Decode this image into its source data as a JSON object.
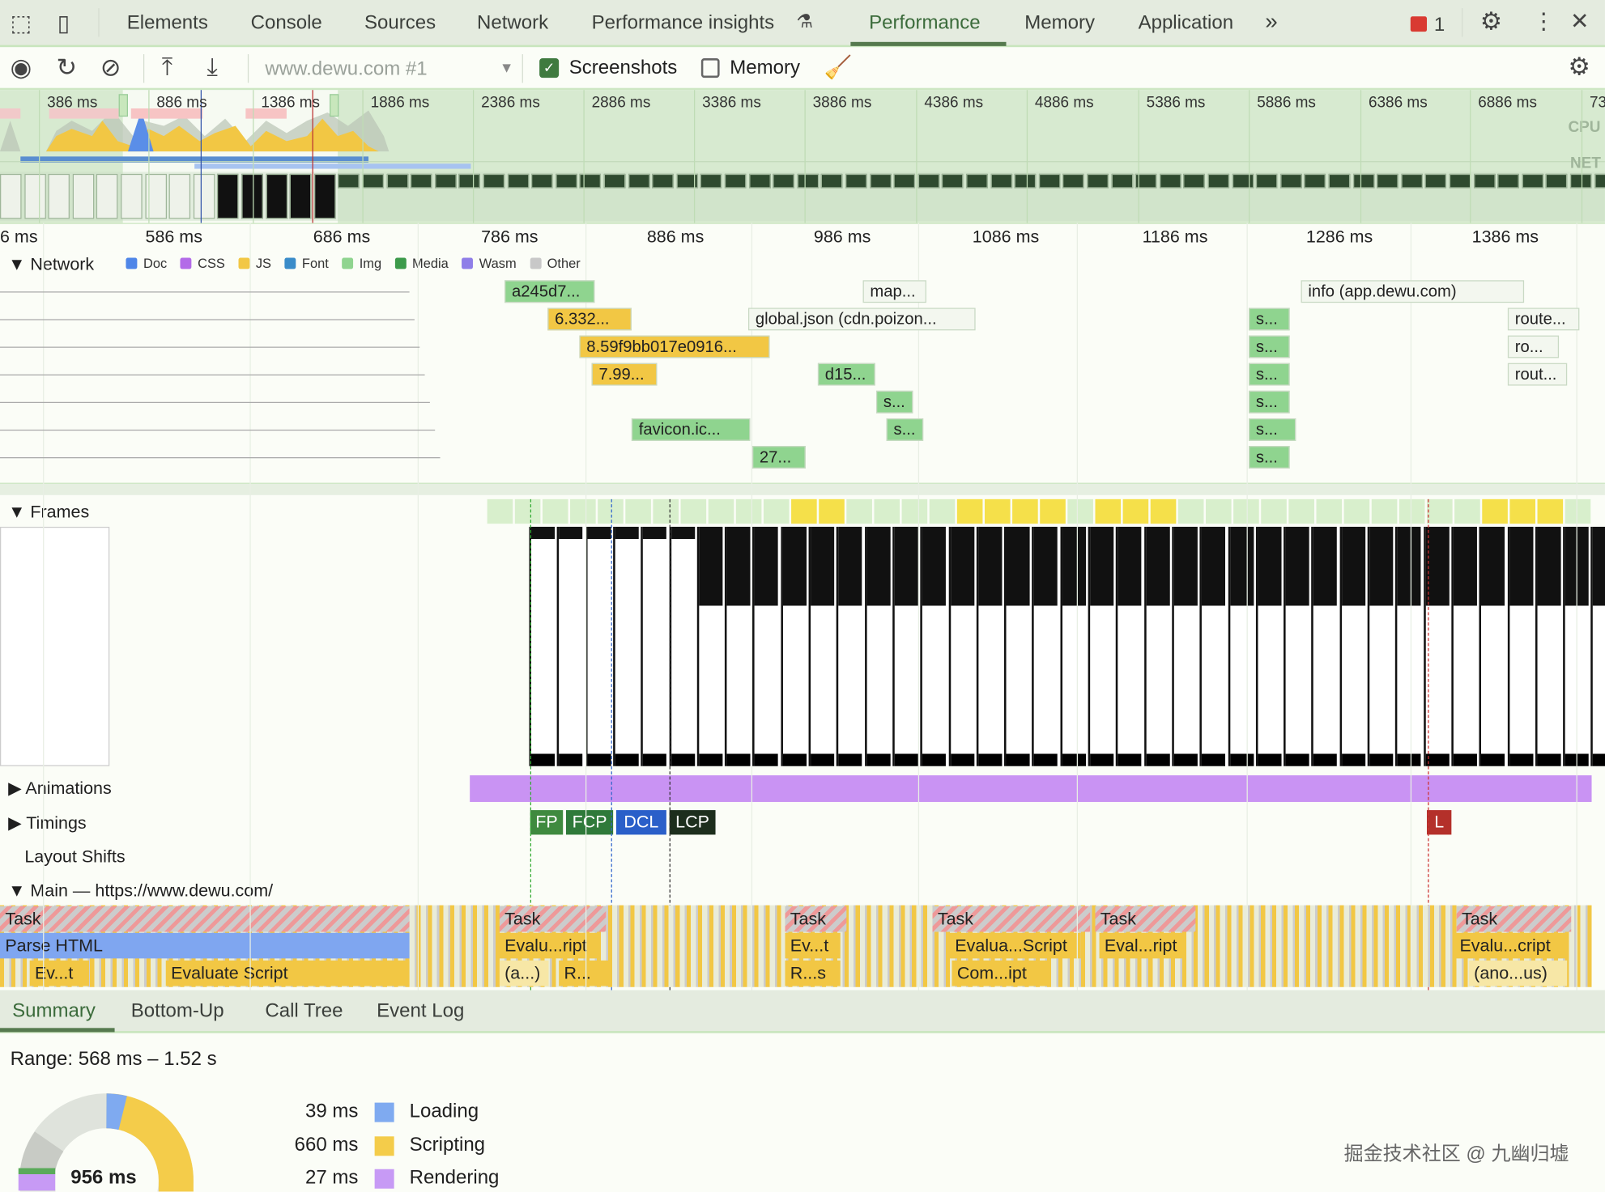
{
  "tabs": {
    "items": [
      "Elements",
      "Console",
      "Sources",
      "Network",
      "Performance insights",
      "Performance",
      "Memory",
      "Application"
    ],
    "active": "Performance",
    "more": "»",
    "issues_count": "1"
  },
  "toolbar": {
    "profile_select": "www.dewu.com #1",
    "screenshots_label": "Screenshots",
    "screenshots_checked": true,
    "memory_label": "Memory",
    "memory_checked": false
  },
  "overview": {
    "ticks": [
      "386 ms",
      "886 ms",
      "1386 ms",
      "1886 ms",
      "2386 ms",
      "2886 ms",
      "3386 ms",
      "3886 ms",
      "4386 ms",
      "4886 ms",
      "5386 ms",
      "5886 ms",
      "6386 ms",
      "6886 ms",
      "73"
    ],
    "cpu_label": "CPU",
    "net_label": "NET"
  },
  "ruler": {
    "ticks": [
      "6 ms",
      "586 ms",
      "686 ms",
      "786 ms",
      "886 ms",
      "986 ms",
      "1086 ms",
      "1186 ms",
      "1286 ms",
      "1386 ms"
    ]
  },
  "network": {
    "title": "Network",
    "legend": [
      {
        "label": "Doc",
        "color": "#4f86e8"
      },
      {
        "label": "CSS",
        "color": "#b36be8"
      },
      {
        "label": "JS",
        "color": "#f2c744"
      },
      {
        "label": "Font",
        "color": "#3a8cc9"
      },
      {
        "label": "Img",
        "color": "#8fd48f"
      },
      {
        "label": "Media",
        "color": "#3c9a4a"
      },
      {
        "label": "Wasm",
        "color": "#8f7ee8"
      },
      {
        "label": "Other",
        "color": "#c8c8c8"
      }
    ],
    "requests": [
      "a245d7...",
      "map...",
      "info (app.dewu.com)",
      "6.332...",
      "global.json (cdn.poizon...",
      "s...",
      "route...",
      "8.59f9bb017e0916...",
      "s...",
      "ro...",
      "7.99...",
      "d15...",
      "s...",
      "rout...",
      "s...",
      "s...",
      "favicon.ic...",
      "s...",
      "s...",
      "27...",
      "s..."
    ],
    "more": "..."
  },
  "tracks": {
    "frames": "Frames",
    "animations": "Animations",
    "timings": "Timings",
    "layout_shifts": "Layout Shifts",
    "main": "Main — https://www.dewu.com/"
  },
  "timings": {
    "fp": "FP",
    "fcp": "FCP",
    "dcl": "DCL",
    "lcp": "LCP",
    "l": "L"
  },
  "flame": {
    "row1": [
      "Task",
      "Task",
      "Task",
      "Task",
      "Task",
      "Task"
    ],
    "row2": [
      "Parse HTML",
      "Evalu...ript",
      "Ev...t",
      "Evalua...Script",
      "Eval...ript",
      "Evalu...cript"
    ],
    "row3": [
      "Ev...t",
      "Evaluate Script",
      "(a...)",
      "R...",
      "R...s",
      "Com...ipt",
      "(ano...us)"
    ]
  },
  "bottom_tabs": {
    "items": [
      "Summary",
      "Bottom-Up",
      "Call Tree",
      "Event Log"
    ],
    "active": "Summary"
  },
  "summary": {
    "range": "Range: 568 ms – 1.52 s",
    "total": "956 ms",
    "rows": [
      {
        "value": "39 ms",
        "label": "Loading",
        "color": "#7faaf0"
      },
      {
        "value": "660 ms",
        "label": "Scripting",
        "color": "#f4cc4a"
      },
      {
        "value": "27 ms",
        "label": "Rendering",
        "color": "#c79af5"
      }
    ]
  },
  "watermark": "掘金技术社区 @ 九幽归墟"
}
